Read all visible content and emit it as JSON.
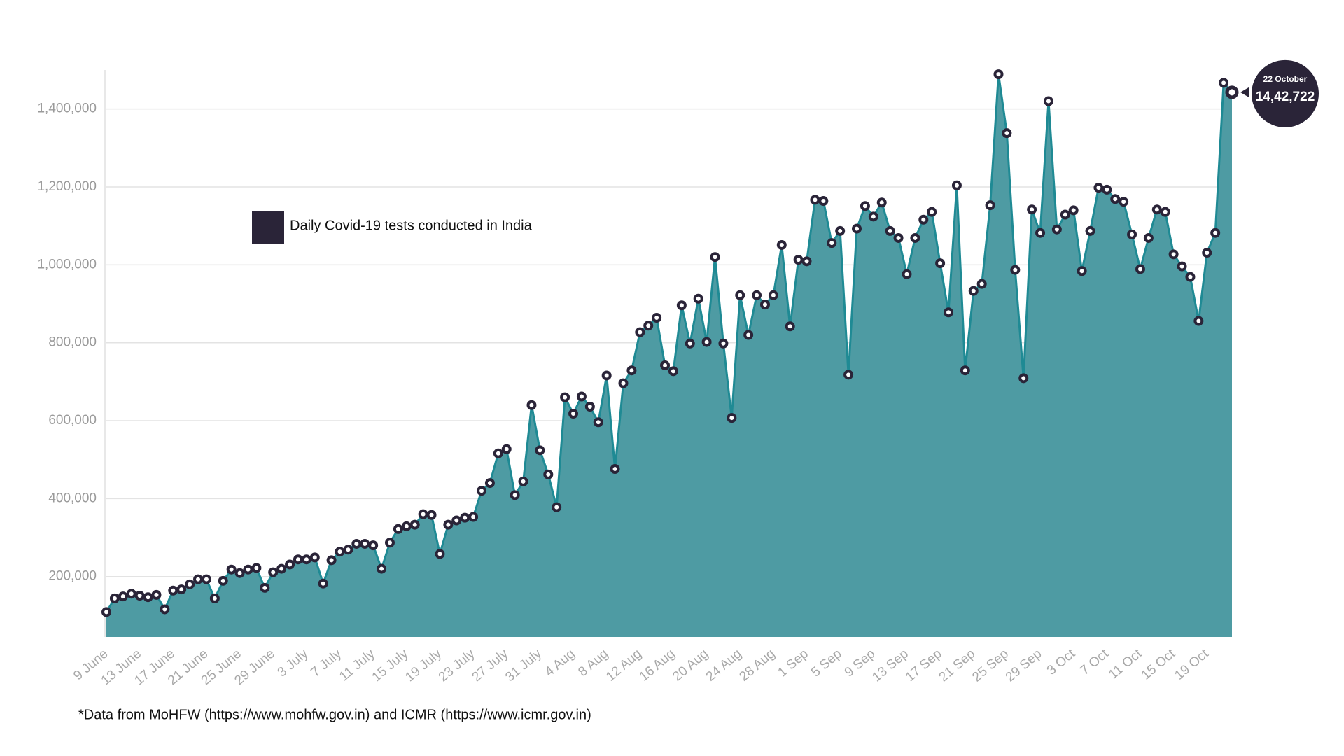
{
  "chart_data": {
    "type": "area",
    "categories": [
      "9 June",
      null,
      null,
      null,
      "13 June",
      null,
      null,
      null,
      "17 June",
      null,
      null,
      null,
      "21 June",
      null,
      null,
      null,
      "25 June",
      null,
      null,
      null,
      "29 June",
      null,
      null,
      null,
      "3 July",
      null,
      null,
      null,
      "7 July",
      null,
      null,
      null,
      "11 July",
      null,
      null,
      null,
      "15 July",
      null,
      null,
      null,
      "19 July",
      null,
      null,
      null,
      "23 July",
      null,
      null,
      null,
      "27 July",
      null,
      null,
      null,
      "31 July",
      null,
      null,
      null,
      "4 Aug",
      null,
      null,
      null,
      "8 Aug",
      null,
      null,
      null,
      "12 Aug",
      null,
      null,
      null,
      "16 Aug",
      null,
      null,
      null,
      "20 Aug",
      null,
      null,
      null,
      "24 Aug",
      null,
      null,
      null,
      "28 Aug",
      null,
      null,
      null,
      "1 Sep",
      null,
      null,
      null,
      "5 Sep",
      null,
      null,
      null,
      "9 Sep",
      null,
      null,
      null,
      "13 Sep",
      null,
      null,
      null,
      "17 Sep",
      null,
      null,
      null,
      "21 Sep",
      null,
      null,
      null,
      "25 Sep",
      null,
      null,
      null,
      "29 Sep",
      null,
      null,
      null,
      "3 Oct",
      null,
      null,
      null,
      "7 Oct",
      null,
      null,
      null,
      "11 Oct",
      null,
      null,
      null,
      "15 Oct",
      null,
      null,
      null,
      "19 Oct",
      null,
      null,
      null
    ],
    "series": [
      {
        "name": "Daily Covid-19 tests conducted in India",
        "color": "#1f8a94",
        "fill": "#4e9ba3",
        "marker_color": "#2a2438",
        "values": [
          109000,
          144000,
          149000,
          156000,
          151000,
          147000,
          153000,
          116000,
          164000,
          167000,
          180000,
          193000,
          193000,
          144000,
          189000,
          218000,
          209000,
          218000,
          222000,
          171000,
          211000,
          220000,
          231000,
          244000,
          244000,
          249000,
          182000,
          242000,
          264000,
          269000,
          284000,
          284000,
          280000,
          220000,
          287000,
          322000,
          329000,
          333000,
          360000,
          358000,
          258000,
          333000,
          344000,
          351000,
          353000,
          420000,
          440000,
          516000,
          527000,
          409000,
          444000,
          640000,
          524000,
          462000,
          378000,
          660000,
          618000,
          662000,
          636000,
          596000,
          716000,
          476000,
          696000,
          729000,
          827000,
          844000,
          864000,
          742000,
          727000,
          896000,
          798000,
          913000,
          802000,
          1020000,
          798000,
          607000,
          922000,
          820000,
          922000,
          898000,
          922000,
          1051000,
          842000,
          1013000,
          1009000,
          1167000,
          1164000,
          1056000,
          1087000,
          718000,
          1093000,
          1151000,
          1124000,
          1160000,
          1087000,
          1069000,
          976000,
          1069000,
          1116000,
          1136000,
          1004000,
          878000,
          1204000,
          729000,
          933000,
          951000,
          1153000,
          1489000,
          1338000,
          987000,
          709000,
          1142000,
          1082000,
          1420000,
          1091000,
          1129000,
          1140000,
          984000,
          1087000,
          1198000,
          1193000,
          1169000,
          1162000,
          1078000,
          989000,
          1069000,
          1142000,
          1136000,
          1027000,
          996000,
          969000,
          856000,
          1031000,
          1082000,
          1467000,
          1442722
        ],
        "value_labels": [
          null,
          null,
          null,
          null,
          null,
          null,
          null,
          null,
          null,
          null,
          null,
          null,
          null,
          null,
          null,
          null,
          null,
          null,
          null,
          null,
          null,
          null,
          null,
          null,
          null,
          null,
          null,
          null,
          null,
          null,
          null,
          null,
          null,
          null,
          null,
          null,
          null,
          null,
          null,
          null,
          null,
          null,
          null,
          null,
          null,
          null,
          null,
          null,
          null,
          null,
          null,
          null,
          null,
          null,
          null,
          null,
          null,
          null,
          null,
          null,
          null,
          null,
          null,
          null,
          null,
          null,
          null,
          null,
          null,
          null,
          null,
          null,
          null,
          null,
          null,
          null,
          null,
          null,
          null,
          null,
          null,
          null,
          null,
          null,
          null,
          null,
          null,
          null,
          null,
          null,
          null,
          null,
          null,
          null,
          null,
          null,
          null,
          null,
          null,
          null,
          null,
          null,
          null,
          null,
          null,
          null,
          null,
          null,
          null,
          null,
          null,
          null,
          null,
          null,
          null,
          null,
          null,
          null,
          null,
          null,
          null,
          null,
          null,
          null,
          null,
          null,
          null,
          null,
          null,
          null,
          null,
          null,
          null,
          null,
          null,
          "14,42,722"
        ]
      }
    ],
    "annotation": {
      "text": "22 October"
    },
    "ylim": [
      45000,
      1500000
    ],
    "yticks": [
      {
        "value": 200000,
        "label": "200,000"
      },
      {
        "value": 400000,
        "label": "400,000"
      },
      {
        "value": 600000,
        "label": "600,000"
      },
      {
        "value": 800000,
        "label": "800,000"
      },
      {
        "value": 1000000,
        "label": "1,000,000"
      },
      {
        "value": 1200000,
        "label": "1,200,000"
      },
      {
        "value": 1400000,
        "label": "1,400,000"
      }
    ],
    "grid": true,
    "footnote": "*Data from MoHFW (https://www.mohfw.gov.in) and ICMR (https://www.icmr.gov.in)"
  }
}
